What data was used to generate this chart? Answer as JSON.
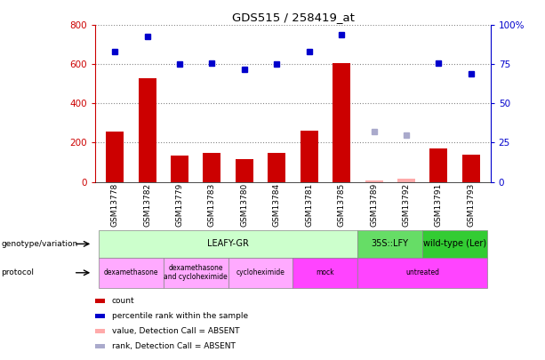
{
  "title": "GDS515 / 258419_at",
  "samples": [
    "GSM13778",
    "GSM13782",
    "GSM13779",
    "GSM13783",
    "GSM13780",
    "GSM13784",
    "GSM13781",
    "GSM13785",
    "GSM13789",
    "GSM13792",
    "GSM13791",
    "GSM13793"
  ],
  "count_values": [
    255,
    530,
    135,
    148,
    118,
    148,
    262,
    605,
    8,
    15,
    172,
    140
  ],
  "count_absent": [
    false,
    false,
    false,
    false,
    false,
    false,
    false,
    false,
    true,
    true,
    false,
    false
  ],
  "rank_values": [
    83,
    93,
    75,
    76,
    72,
    75,
    83,
    94,
    32,
    30,
    76,
    69
  ],
  "rank_absent": [
    false,
    false,
    false,
    false,
    false,
    false,
    false,
    false,
    true,
    true,
    false,
    false
  ],
  "ylim_left": [
    0,
    800
  ],
  "ylim_right": [
    0,
    100
  ],
  "yticks_left": [
    0,
    200,
    400,
    600,
    800
  ],
  "yticks_right": [
    0,
    25,
    50,
    75,
    100
  ],
  "bar_color": "#cc0000",
  "bar_absent_color": "#ffaaaa",
  "rank_color": "#0000cc",
  "rank_absent_color": "#aaaacc",
  "genotype_groups": [
    {
      "label": "LEAFY-GR",
      "start": 0,
      "end": 7,
      "color": "#ccffcc"
    },
    {
      "label": "35S::LFY",
      "start": 8,
      "end": 9,
      "color": "#66dd66"
    },
    {
      "label": "wild-type (Ler)",
      "start": 10,
      "end": 11,
      "color": "#33cc33"
    }
  ],
  "protocol_groups": [
    {
      "label": "dexamethasone",
      "start": 0,
      "end": 1,
      "color": "#ffaaff"
    },
    {
      "label": "dexamethasone\nand cycloheximide",
      "start": 2,
      "end": 3,
      "color": "#ffaaff"
    },
    {
      "label": "cycloheximide",
      "start": 4,
      "end": 5,
      "color": "#ffaaff"
    },
    {
      "label": "mock",
      "start": 6,
      "end": 7,
      "color": "#ff44ff"
    },
    {
      "label": "untreated",
      "start": 8,
      "end": 11,
      "color": "#ff44ff"
    }
  ],
  "legend_items": [
    {
      "label": "count",
      "color": "#cc0000"
    },
    {
      "label": "percentile rank within the sample",
      "color": "#0000cc"
    },
    {
      "label": "value, Detection Call = ABSENT",
      "color": "#ffaaaa"
    },
    {
      "label": "rank, Detection Call = ABSENT",
      "color": "#aaaacc"
    }
  ],
  "row_label_genotype": "genotype/variation",
  "row_label_protocol": "protocol"
}
